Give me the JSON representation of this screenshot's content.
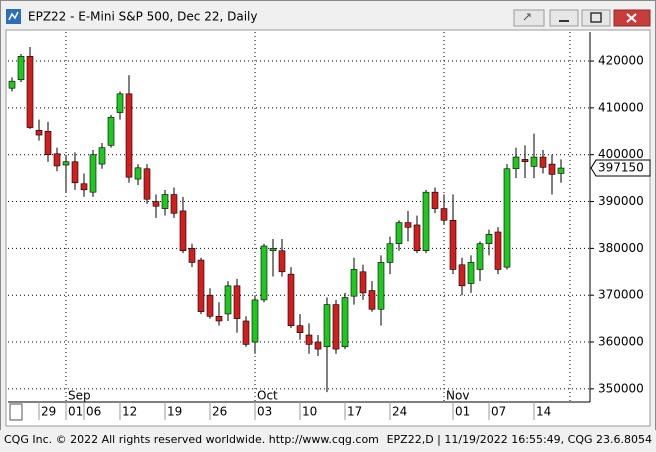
{
  "window": {
    "title": "EPZ22 - E-Mini S&P 500, Dec 22, Daily"
  },
  "chart_data": {
    "type": "candlestick",
    "categories": [
      null,
      null,
      null,
      "29",
      null,
      null,
      "01",
      null,
      "06",
      null,
      null,
      null,
      "12",
      null,
      null,
      null,
      null,
      "19",
      null,
      null,
      null,
      null,
      "26",
      null,
      null,
      null,
      null,
      "03",
      null,
      null,
      null,
      null,
      "10",
      null,
      null,
      null,
      null,
      "17",
      null,
      null,
      null,
      null,
      "24",
      null,
      null,
      null,
      null,
      null,
      null,
      "01",
      null,
      null,
      null,
      "07",
      null,
      null,
      null,
      null,
      "14",
      null,
      null,
      null,
      null
    ],
    "months": [
      null,
      null,
      null,
      null,
      null,
      null,
      "Sep",
      null,
      null,
      null,
      null,
      null,
      null,
      null,
      null,
      null,
      null,
      null,
      null,
      null,
      null,
      null,
      null,
      null,
      null,
      null,
      null,
      "Oct",
      null,
      null,
      null,
      null,
      null,
      null,
      null,
      null,
      null,
      null,
      null,
      null,
      null,
      null,
      null,
      null,
      null,
      null,
      null,
      null,
      "Nov",
      null,
      null,
      null,
      null,
      null,
      null,
      null,
      null,
      null,
      null,
      null,
      null,
      null
    ],
    "open": [
      414200,
      416000,
      421000,
      405200,
      405000,
      400200,
      397800,
      398500,
      393800,
      392000,
      398000,
      402000,
      409000,
      413000,
      394800,
      397000,
      390000,
      388500,
      391500,
      388000,
      380000,
      377500,
      370000,
      365500,
      366000,
      372000,
      364500,
      360000,
      369000,
      379500,
      379500,
      374500,
      363500,
      361500,
      360000,
      359000,
      368000,
      359000,
      369800,
      375000,
      371000,
      367000,
      377000,
      381000,
      385500,
      385000,
      379500,
      392000,
      388500,
      386000,
      376500,
      372500,
      375500,
      381000,
      383500,
      376000,
      397000,
      399000,
      397500,
      399500,
      398000,
      396000
    ],
    "high": [
      416500,
      421500,
      423000,
      407500,
      407000,
      401500,
      400000,
      400500,
      396000,
      401000,
      402500,
      408500,
      413500,
      417000,
      398000,
      398000,
      391500,
      392500,
      393000,
      391000,
      381000,
      378000,
      371500,
      368500,
      373000,
      373500,
      365500,
      370000,
      381000,
      382000,
      382000,
      376000,
      366000,
      364000,
      361500,
      369500,
      369000,
      370500,
      378000,
      376500,
      373000,
      378500,
      382500,
      386000,
      388000,
      387000,
      392500,
      393000,
      391500,
      391500,
      378000,
      378500,
      381500,
      384000,
      384500,
      398000,
      401500,
      402000,
      404500,
      401000,
      400000,
      399000
    ],
    "low": [
      413500,
      415500,
      405500,
      403000,
      398500,
      396500,
      392000,
      392500,
      391000,
      391000,
      397000,
      401500,
      407500,
      394000,
      393500,
      389500,
      386500,
      387000,
      386500,
      379000,
      376000,
      366000,
      365000,
      363500,
      364500,
      362000,
      359000,
      357500,
      368500,
      374000,
      374000,
      363000,
      360500,
      357500,
      357000,
      349300,
      357500,
      358500,
      368000,
      369000,
      366500,
      363500,
      374500,
      379500,
      381500,
      379000,
      379000,
      387500,
      385000,
      374500,
      370000,
      370500,
      373000,
      378500,
      374500,
      375500,
      395000,
      395000,
      395000,
      396000,
      391500,
      394000
    ],
    "close": [
      415700,
      421000,
      405800,
      404200,
      400000,
      397600,
      398500,
      394000,
      392500,
      400000,
      401500,
      408000,
      413000,
      395200,
      397200,
      390500,
      389000,
      391500,
      387500,
      379500,
      377000,
      366500,
      365500,
      364500,
      372000,
      365000,
      359500,
      369000,
      380500,
      380000,
      375000,
      363500,
      362000,
      359500,
      358500,
      368000,
      358500,
      369500,
      375500,
      370500,
      367000,
      377000,
      381000,
      385500,
      384500,
      379500,
      392000,
      388500,
      386000,
      375500,
      372000,
      377000,
      381000,
      383000,
      375500,
      397000,
      399500,
      398500,
      399500,
      397300,
      395800,
      397150
    ],
    "up_color": "#1ec81e",
    "down_color": "#d41e1e",
    "ylim": [
      347200,
      426200
    ],
    "yticks": [
      350000,
      360000,
      370000,
      380000,
      390000,
      400000,
      410000,
      420000
    ],
    "grid": true,
    "last_value": 397150
  },
  "footer": {
    "left": "CQG Inc. © 2022 All rights reserved worldwide. http://www.cqg.com",
    "right": "EPZ22,D | 11/19/2022 16:55:49, CQG 23.6.8054"
  }
}
